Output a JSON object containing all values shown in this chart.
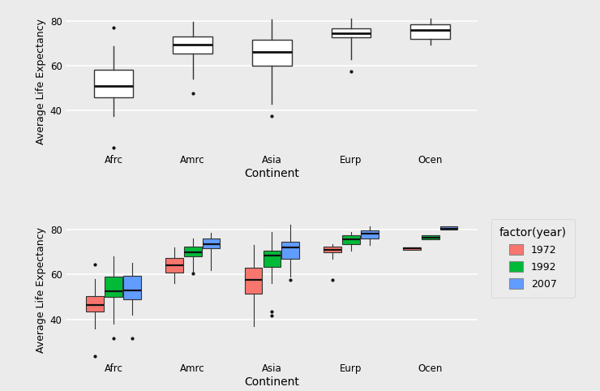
{
  "continents": [
    "Afrc",
    "Amrc",
    "Asia",
    "Eurp",
    "Ocen"
  ],
  "years": [
    1972,
    1992,
    2007
  ],
  "year_colors": {
    "1972": "#F8766D",
    "1992": "#00BA38",
    "2007": "#619CFF"
  },
  "background_color": "#EBEBEB",
  "grid_color": "#FFFFFF",
  "ylabel": "Average Life Expectancy",
  "xlabel": "Continent",
  "legend_title": "factor(year)",
  "top_boxes": {
    "Afrc": {
      "q1": 46.0,
      "median": 51.0,
      "q3": 58.0,
      "whislo": 37.5,
      "whishi": 68.5,
      "fliers_lo": [
        23.6
      ],
      "fliers_hi": [
        76.8
      ]
    },
    "Amrc": {
      "q1": 65.5,
      "median": 69.5,
      "q3": 73.0,
      "whislo": 54.0,
      "whishi": 79.5,
      "fliers_lo": [
        47.5
      ],
      "fliers_hi": []
    },
    "Asia": {
      "q1": 60.0,
      "median": 66.0,
      "q3": 71.5,
      "whislo": 43.0,
      "whishi": 80.5,
      "fliers_lo": [
        37.5
      ],
      "fliers_hi": []
    },
    "Eurp": {
      "q1": 72.5,
      "median": 74.5,
      "q3": 76.5,
      "whislo": 63.0,
      "whishi": 81.0,
      "fliers_lo": [
        57.5
      ],
      "fliers_hi": []
    },
    "Ocen": {
      "q1": 72.0,
      "median": 76.0,
      "q3": 78.5,
      "whislo": 69.5,
      "whishi": 81.0,
      "fliers_lo": [],
      "fliers_hi": []
    }
  },
  "bottom_boxes": {
    "Afrc": {
      "1972": {
        "q1": 43.5,
        "median": 46.5,
        "q3": 50.5,
        "whislo": 36.0,
        "whishi": 58.0,
        "fliers_lo": [
          23.6
        ],
        "fliers_hi": [
          64.3
        ]
      },
      "1992": {
        "q1": 50.0,
        "median": 52.5,
        "q3": 59.0,
        "whislo": 38.0,
        "whishi": 68.0,
        "fliers_lo": [
          31.5
        ],
        "fliers_hi": []
      },
      "2007": {
        "q1": 49.0,
        "median": 53.0,
        "q3": 59.5,
        "whislo": 42.0,
        "whishi": 65.0,
        "fliers_lo": [
          31.5
        ],
        "fliers_hi": []
      }
    },
    "Amrc": {
      "1972": {
        "q1": 61.0,
        "median": 64.0,
        "q3": 67.5,
        "whislo": 56.0,
        "whishi": 72.0,
        "fliers_lo": [],
        "fliers_hi": []
      },
      "1992": {
        "q1": 68.0,
        "median": 70.0,
        "q3": 72.5,
        "whislo": 61.0,
        "whishi": 76.0,
        "fliers_lo": [
          60.5
        ],
        "fliers_hi": []
      },
      "2007": {
        "q1": 71.5,
        "median": 73.5,
        "q3": 76.0,
        "whislo": 62.0,
        "whishi": 78.5,
        "fliers_lo": [],
        "fliers_hi": []
      }
    },
    "Asia": {
      "1972": {
        "q1": 51.5,
        "median": 57.5,
        "q3": 63.0,
        "whislo": 37.0,
        "whishi": 73.0,
        "fliers_lo": [],
        "fliers_hi": []
      },
      "1992": {
        "q1": 63.5,
        "median": 68.5,
        "q3": 70.5,
        "whislo": 56.0,
        "whishi": 79.0,
        "fliers_lo": [
          41.5
        ],
        "fliers_hi": [
          43.5
        ]
      },
      "2007": {
        "q1": 67.0,
        "median": 72.0,
        "q3": 74.5,
        "whislo": 59.0,
        "whishi": 82.0,
        "fliers_lo": [],
        "fliers_hi": [
          57.5
        ]
      }
    },
    "Eurp": {
      "1972": {
        "q1": 70.0,
        "median": 71.0,
        "q3": 72.5,
        "whislo": 67.0,
        "whishi": 73.5,
        "fliers_lo": [
          57.5
        ],
        "fliers_hi": []
      },
      "1992": {
        "q1": 73.5,
        "median": 75.5,
        "q3": 77.5,
        "whislo": 70.5,
        "whishi": 79.0,
        "fliers_lo": [],
        "fliers_hi": []
      },
      "2007": {
        "q1": 76.0,
        "median": 78.0,
        "q3": 79.5,
        "whislo": 73.0,
        "whishi": 81.5,
        "fliers_lo": [],
        "fliers_hi": []
      }
    },
    "Ocen": {
      "1972": {
        "q1": 71.0,
        "median": 71.5,
        "q3": 72.0,
        "whislo": 71.0,
        "whishi": 72.0,
        "fliers_lo": [],
        "fliers_hi": []
      },
      "1992": {
        "q1": 75.5,
        "median": 76.5,
        "q3": 77.5,
        "whislo": 75.5,
        "whishi": 77.5,
        "fliers_lo": [],
        "fliers_hi": []
      },
      "2007": {
        "q1": 80.0,
        "median": 80.5,
        "q3": 81.5,
        "whislo": 80.0,
        "whishi": 81.5,
        "fliers_lo": [],
        "fliers_hi": []
      }
    }
  },
  "ylim": [
    22,
    84
  ],
  "yticks": [
    40,
    60,
    80
  ]
}
